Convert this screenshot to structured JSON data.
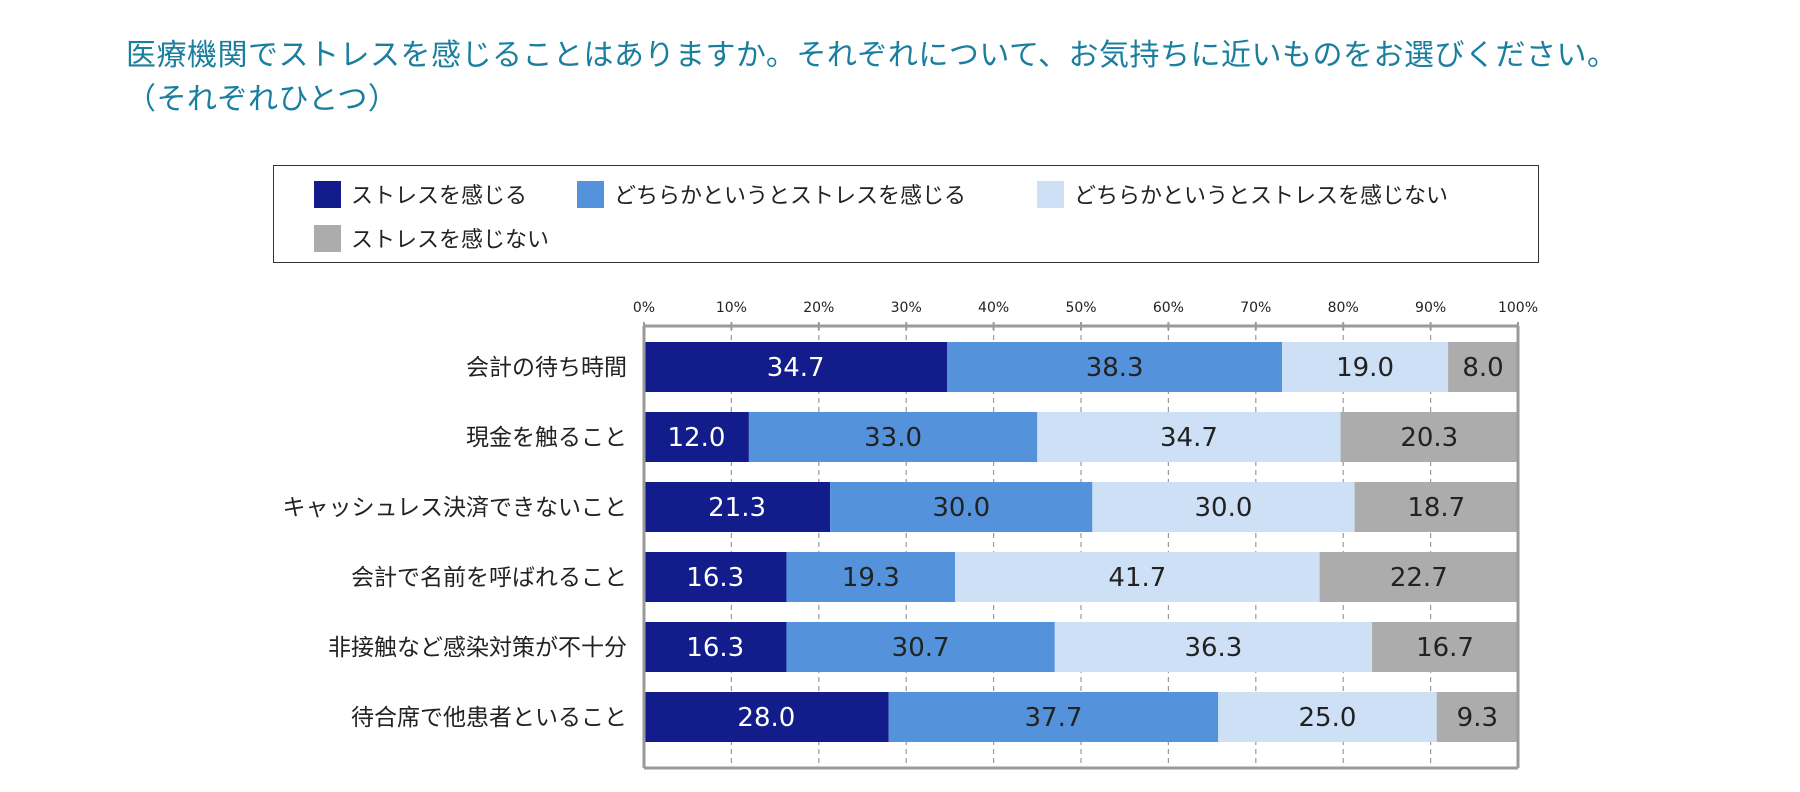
{
  "chart_data": {
    "type": "bar",
    "orientation": "horizontal",
    "stacked": true,
    "title": [
      "医療機関でストレスを感じることはありますか。それぞれについて、お気持ちに近いものをお選びください。",
      "（それぞれひとつ）"
    ],
    "categories": [
      "会計の待ち時間",
      "現金を触ること",
      "キャッシュレス決済できないこと",
      "会計で名前を呼ばれること",
      "非接触など感染対策が不十分",
      "待合席で他患者といること"
    ],
    "series": [
      {
        "name": "ストレスを感じる",
        "color": "#121c8a",
        "label_color": "#ffffff",
        "values": [
          34.7,
          12.0,
          21.3,
          16.3,
          16.3,
          28.0
        ]
      },
      {
        "name": "どちらかというとストレスを感じる",
        "color": "#5592dc",
        "label_color": "#222222",
        "values": [
          38.3,
          33.0,
          30.0,
          19.3,
          30.7,
          37.7
        ]
      },
      {
        "name": "どちらかというとストレスを感じない",
        "color": "#cde0f5",
        "label_color": "#222222",
        "values": [
          19.0,
          34.7,
          30.0,
          41.7,
          36.3,
          25.0
        ]
      },
      {
        "name": "ストレスを感じない",
        "color": "#acacac",
        "label_color": "#222222",
        "values": [
          8.0,
          20.3,
          18.7,
          22.7,
          16.7,
          9.3
        ]
      }
    ],
    "xlim": [
      0,
      100
    ],
    "x_ticks": [
      "0%",
      "10%",
      "20%",
      "30%",
      "40%",
      "50%",
      "60%",
      "70%",
      "80%",
      "90%",
      "100%"
    ],
    "grid": "vertical-dashed",
    "legend_position": "top"
  }
}
